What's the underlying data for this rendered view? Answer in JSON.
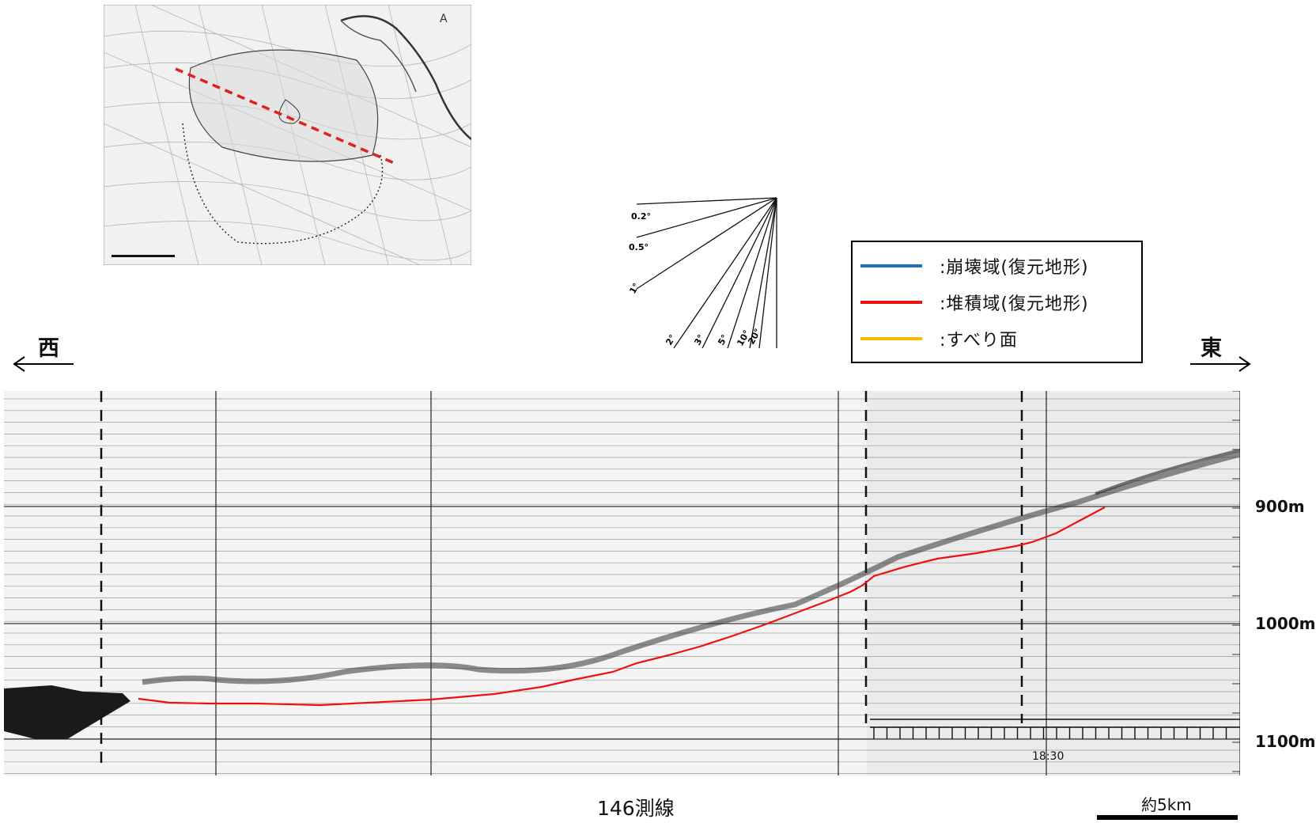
{
  "legend": {
    "items": [
      {
        "label": ":崩壊域(復元地形)",
        "color": "#1f6fc5"
      },
      {
        "label": ":堆積域(復元地形)",
        "color": "#ee1111"
      },
      {
        "label": ":すべり面",
        "color": "#f5b800"
      }
    ]
  },
  "directions": {
    "west": "西",
    "east": "東"
  },
  "angle_scale": {
    "labels": [
      "0.2°",
      "0.5°",
      "1°",
      "2°",
      "3°",
      "5°",
      "10°",
      "20°"
    ]
  },
  "depth_labels": [
    "900m",
    "1000m",
    "1100m"
  ],
  "profile_text": {
    "time_mark": "18:30"
  },
  "line_name": "146測線",
  "scale_label": "約5km",
  "colors": {
    "profile_line": "#ee1111",
    "section_line": "#e02020"
  }
}
